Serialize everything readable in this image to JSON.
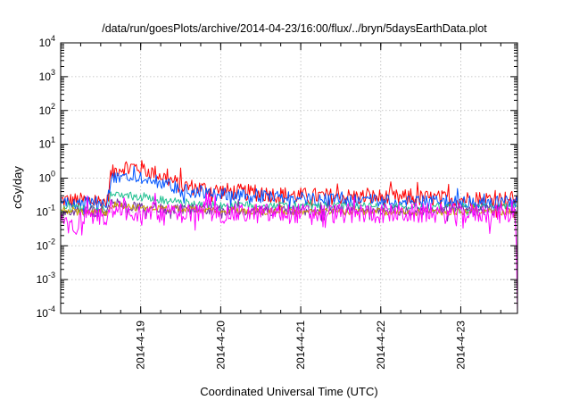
{
  "chart_data": {
    "type": "line",
    "title": "/data/run/goesPlots/archive/2014-04-23/16:00/flux/../bryn/5daysEarthData.plot",
    "xlabel": "Coordinated Universal Time (UTC)",
    "ylabel": "cGy/day",
    "y_scale": "log",
    "ylim": [
      0.0001,
      10000
    ],
    "xlim": [
      "2014-04-18 00:00",
      "2014-04-23 17:00"
    ],
    "x_ticks": [
      "2014-4-19",
      "2014-4-20",
      "2014-4-21",
      "2014-4-22",
      "2014-4-23"
    ],
    "y_ticks": [
      {
        "base": "10",
        "exp": "-4",
        "value": 0.0001
      },
      {
        "base": "10",
        "exp": "-3",
        "value": 0.001
      },
      {
        "base": "10",
        "exp": "-2",
        "value": 0.01
      },
      {
        "base": "10",
        "exp": "-1",
        "value": 0.1
      },
      {
        "base": "10",
        "exp": "0",
        "value": 1
      },
      {
        "base": "10",
        "exp": "1",
        "value": 10
      },
      {
        "base": "10",
        "exp": "2",
        "value": 100
      },
      {
        "base": "10",
        "exp": "3",
        "value": 1000
      },
      {
        "base": "10",
        "exp": "4",
        "value": 10000
      }
    ],
    "grid": true,
    "series": [
      {
        "color": "#ff0000",
        "noise": 0.25,
        "points": [
          [
            "2014-04-18 00:00",
            0.22
          ],
          [
            "2014-04-18 14:00",
            0.2
          ],
          [
            "2014-04-18 15:00",
            1.2
          ],
          [
            "2014-04-18 17:00",
            1.9
          ],
          [
            "2014-04-18 20:00",
            2.2
          ],
          [
            "2014-04-19 00:00",
            2.0
          ],
          [
            "2014-04-19 06:00",
            1.2
          ],
          [
            "2014-04-19 12:00",
            0.6
          ],
          [
            "2014-04-20 00:00",
            0.42
          ],
          [
            "2014-04-20 12:00",
            0.35
          ],
          [
            "2014-04-21 00:00",
            0.3
          ],
          [
            "2014-04-22 00:00",
            0.27
          ],
          [
            "2014-04-23 00:00",
            0.24
          ],
          [
            "2014-04-23 17:00",
            0.24
          ]
        ]
      },
      {
        "color": "#0055ff",
        "noise": 0.2,
        "points": [
          [
            "2014-04-18 00:00",
            0.2
          ],
          [
            "2014-04-18 14:00",
            0.18
          ],
          [
            "2014-04-18 15:00",
            0.8
          ],
          [
            "2014-04-18 17:00",
            1.1
          ],
          [
            "2014-04-18 20:00",
            1.2
          ],
          [
            "2014-04-19 00:00",
            1.1
          ],
          [
            "2014-04-19 06:00",
            0.75
          ],
          [
            "2014-04-19 12:00",
            0.45
          ],
          [
            "2014-04-20 00:00",
            0.33
          ],
          [
            "2014-04-20 12:00",
            0.28
          ],
          [
            "2014-04-21 00:00",
            0.24
          ],
          [
            "2014-04-22 00:00",
            0.21
          ],
          [
            "2014-04-23 00:00",
            0.19
          ],
          [
            "2014-04-23 17:00",
            0.19
          ]
        ]
      },
      {
        "color": "#20c090",
        "noise": 0.12,
        "points": [
          [
            "2014-04-18 00:00",
            0.13
          ],
          [
            "2014-04-18 14:00",
            0.12
          ],
          [
            "2014-04-18 15:00",
            0.3
          ],
          [
            "2014-04-18 18:00",
            0.32
          ],
          [
            "2014-04-19 00:00",
            0.27
          ],
          [
            "2014-04-19 12:00",
            0.19
          ],
          [
            "2014-04-20 00:00",
            0.16
          ],
          [
            "2014-04-21 00:00",
            0.15
          ],
          [
            "2014-04-22 00:00",
            0.14
          ],
          [
            "2014-04-23 00:00",
            0.14
          ],
          [
            "2014-04-23 17:00",
            0.14
          ]
        ]
      },
      {
        "color": "#7030a0",
        "noise": 0.15,
        "points": [
          [
            "2014-04-18 00:00",
            0.1
          ],
          [
            "2014-04-18 14:00",
            0.1
          ],
          [
            "2014-04-18 15:00",
            0.2
          ],
          [
            "2014-04-18 18:00",
            0.17
          ],
          [
            "2014-04-19 00:00",
            0.14
          ],
          [
            "2014-04-19 12:00",
            0.12
          ],
          [
            "2014-04-20 00:00",
            0.11
          ],
          [
            "2014-04-21 00:00",
            0.11
          ],
          [
            "2014-04-22 00:00",
            0.11
          ],
          [
            "2014-04-23 00:00",
            0.11
          ],
          [
            "2014-04-23 17:00",
            0.11
          ]
        ]
      },
      {
        "color": "#c8a000",
        "noise": 0.1,
        "points": [
          [
            "2014-04-18 00:00",
            0.1
          ],
          [
            "2014-04-18 14:00",
            0.1
          ],
          [
            "2014-04-18 15:00",
            0.16
          ],
          [
            "2014-04-18 18:00",
            0.15
          ],
          [
            "2014-04-19 00:00",
            0.13
          ],
          [
            "2014-04-20 00:00",
            0.11
          ],
          [
            "2014-04-21 00:00",
            0.1
          ],
          [
            "2014-04-22 00:00",
            0.1
          ],
          [
            "2014-04-23 00:00",
            0.1
          ],
          [
            "2014-04-23 17:00",
            0.1
          ]
        ]
      },
      {
        "color": "#ff00ff",
        "noise": 0.3,
        "points": [
          [
            "2014-04-18 00:00",
            0.08
          ],
          [
            "2014-04-18 02:00",
            0.05
          ],
          [
            "2014-04-18 04:00",
            0.025
          ],
          [
            "2014-04-18 06:00",
            0.08
          ],
          [
            "2014-04-18 14:00",
            0.08
          ],
          [
            "2014-04-18 15:00",
            0.13
          ],
          [
            "2014-04-18 18:00",
            0.11
          ],
          [
            "2014-04-19 00:00",
            0.1
          ],
          [
            "2014-04-20 00:00",
            0.09
          ],
          [
            "2014-04-21 00:00",
            0.09
          ],
          [
            "2014-04-22 00:00",
            0.09
          ],
          [
            "2014-04-23 00:00",
            0.09
          ],
          [
            "2014-04-23 16:30",
            0.09
          ],
          [
            "2014-04-23 17:00",
            0.0001
          ]
        ]
      }
    ]
  }
}
